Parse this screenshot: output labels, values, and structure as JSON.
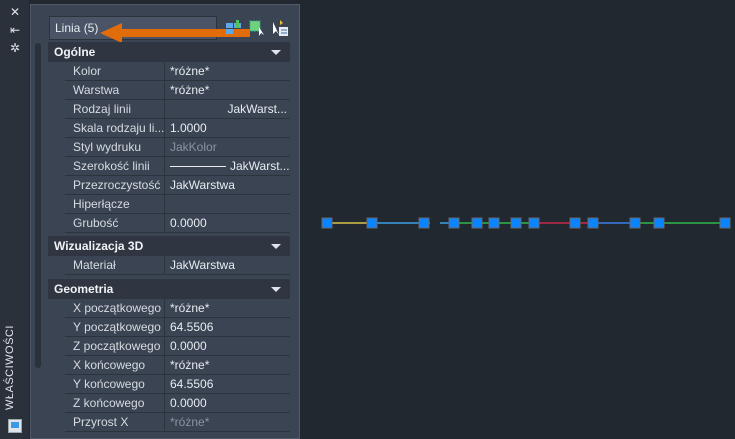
{
  "strip": {
    "title": "WŁAŚCIWOŚCI",
    "icons": [
      "close-icon",
      "auto-hide-icon",
      "settings-icon",
      "properties-icon"
    ]
  },
  "selector": {
    "value": "Linia (5)"
  },
  "accent": "#e06c0a",
  "sections": [
    {
      "title": "Ogólne",
      "rows": [
        {
          "label": "Kolor",
          "value": "*różne*"
        },
        {
          "label": "Warstwa",
          "value": "*różne*"
        },
        {
          "label": "Rodzaj linii",
          "value": "JakWarst..."
        },
        {
          "label": "Skala rodzaju li...",
          "value": "1.0000"
        },
        {
          "label": "Styl wydruku",
          "value": "JakKolor"
        },
        {
          "label": "Szerokość linii",
          "value": "JakWarst..."
        },
        {
          "label": "Przezroczystość",
          "value": "JakWarstwa"
        },
        {
          "label": "Hiperłącze",
          "value": ""
        },
        {
          "label": "Grubość",
          "value": "0.0000"
        }
      ]
    },
    {
      "title": "Wizualizacja 3D",
      "rows": [
        {
          "label": "Materiał",
          "value": "JakWarstwa"
        }
      ]
    },
    {
      "title": "Geometria",
      "rows": [
        {
          "label": "X początkowego",
          "value": "*różne*"
        },
        {
          "label": "Y początkowego",
          "value": "64.5506"
        },
        {
          "label": "Z początkowego",
          "value": "0.0000"
        },
        {
          "label": "X końcowego",
          "value": "*różne*"
        },
        {
          "label": "Y końcowego",
          "value": "64.5506"
        },
        {
          "label": "Z końcowego",
          "value": "0.0000"
        },
        {
          "label": "Przyrost X",
          "value": "*różne*"
        }
      ]
    }
  ]
}
